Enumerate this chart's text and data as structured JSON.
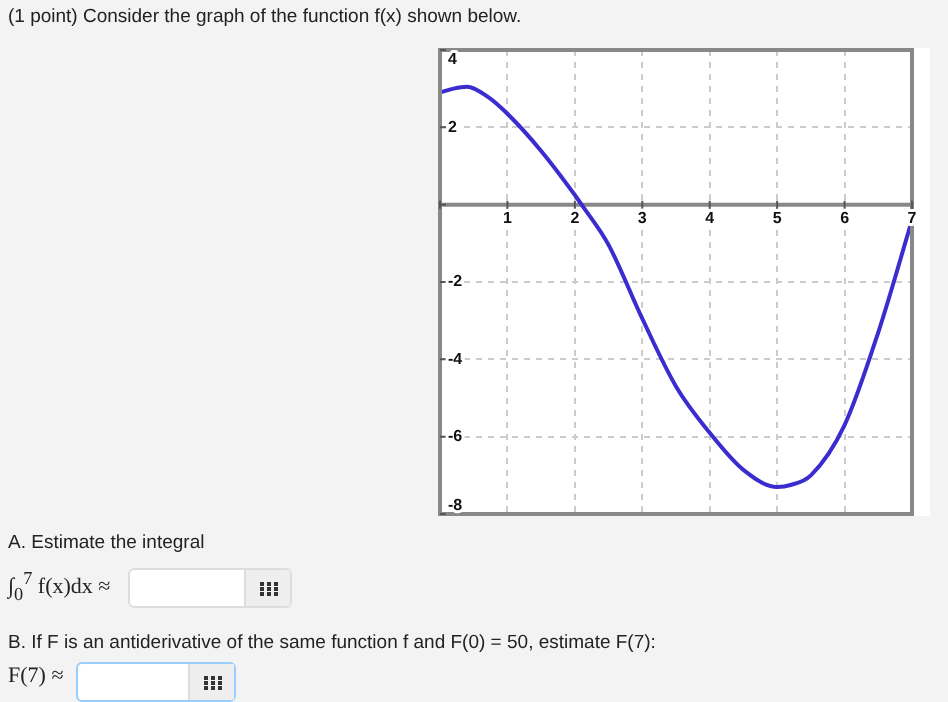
{
  "chart_data": {
    "type": "line",
    "title": "(1 point) Consider the graph of the function f(x) shown below.",
    "x": [
      0,
      0.2,
      0.4,
      0.7,
      1,
      1.5,
      2,
      2.1,
      2.5,
      3,
      3.5,
      4,
      4.5,
      5,
      5.2,
      5.5,
      6,
      6.5,
      7
    ],
    "series": [
      {
        "color": "#3a2ccf",
        "values": [
          2.9,
          3.0,
          3.05,
          2.8,
          2.35,
          1.39,
          0.25,
          0,
          -1.04,
          -2.95,
          -4.7,
          -5.9,
          -6.86,
          -7.3,
          -7.25,
          -7.0,
          -5.7,
          -3.3,
          -0.4
        ]
      }
    ],
    "xlim": [
      0,
      7
    ],
    "xticks": [
      {
        "value": 0,
        "label": null
      },
      1,
      2,
      3,
      4,
      5,
      6,
      7
    ],
    "ylim": [
      -8,
      4
    ],
    "yticks": [
      -8,
      -6,
      -4,
      -2,
      {
        "value": 0,
        "label": null
      },
      2,
      4
    ],
    "grid": true,
    "legend": false,
    "marker": "none",
    "line_style": "solid",
    "annotations": [
      "A. Estimate the integral",
      "∫$_{0}$$^{7}$ f(x)dx ≈",
      "B. If F is an antiderivative of the same function f and F(0) = 50, estimate F(7):",
      "F(7) ≈"
    ]
  }
}
